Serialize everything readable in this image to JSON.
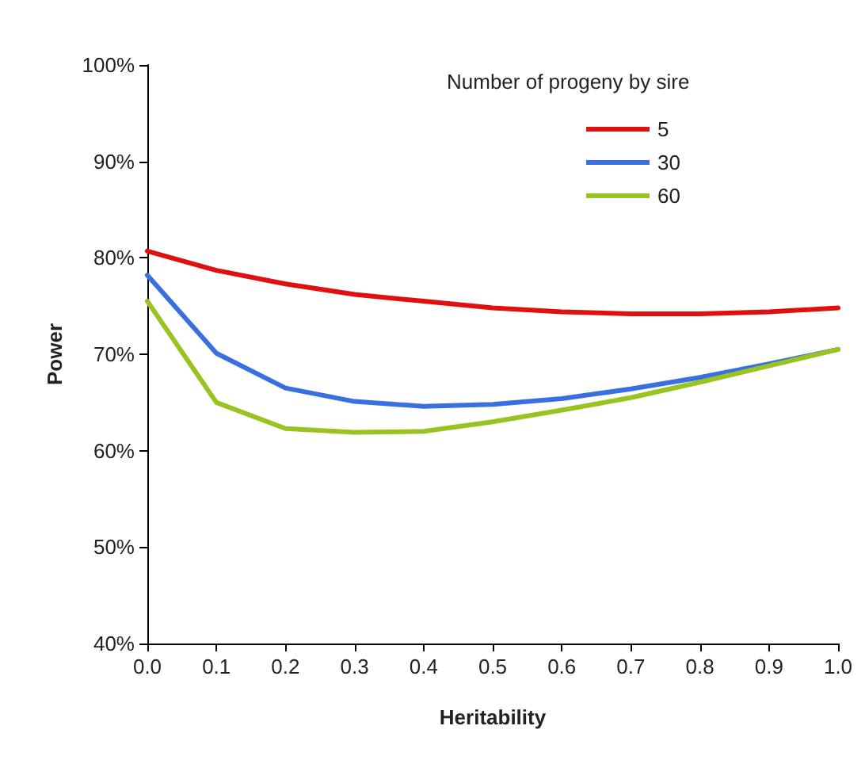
{
  "chart_data": {
    "type": "line",
    "xlabel": "Heritability",
    "ylabel": "Power",
    "legend_title": "Number of progeny by sire",
    "legend": "top right",
    "grid": false,
    "marker": "none",
    "line_style": "solid",
    "x": [
      0,
      0.1,
      0.2,
      0.3,
      0.4,
      0.5,
      0.6,
      0.7,
      0.8,
      0.9,
      1.0
    ],
    "series": [
      {
        "name": "5",
        "color": "#e01010",
        "values": [
          80.7,
          78.7,
          77.3,
          76.2,
          75.5,
          74.8,
          74.4,
          74.2,
          74.2,
          74.4,
          74.8
        ]
      },
      {
        "name": "30",
        "color": "#3a6fe0",
        "values": [
          78.2,
          70.1,
          66.5,
          65.1,
          64.6,
          64.8,
          65.4,
          66.4,
          67.6,
          69.0,
          70.5
        ]
      },
      {
        "name": "60",
        "color": "#99c320",
        "values": [
          75.5,
          65.0,
          62.3,
          61.9,
          62.0,
          63.0,
          64.2,
          65.5,
          67.1,
          68.8,
          70.5
        ]
      }
    ],
    "xlim": [
      0,
      1
    ],
    "xticks": [
      {
        "value": 0,
        "label": "0.0"
      },
      {
        "value": 0.1,
        "label": "0.1"
      },
      {
        "value": 0.2,
        "label": "0.2"
      },
      {
        "value": 0.3,
        "label": "0.3"
      },
      {
        "value": 0.4,
        "label": "0.4"
      },
      {
        "value": 0.5,
        "label": "0.5"
      },
      {
        "value": 0.6,
        "label": "0.6"
      },
      {
        "value": 0.7,
        "label": "0.7"
      },
      {
        "value": 0.8,
        "label": "0.8"
      },
      {
        "value": 0.9,
        "label": "0.9"
      },
      {
        "value": 1,
        "label": "1.0"
      }
    ],
    "ylim": [
      40,
      100
    ],
    "yticks": [
      {
        "value": 40,
        "label": "40%"
      },
      {
        "value": 50,
        "label": "50%"
      },
      {
        "value": 60,
        "label": "60%"
      },
      {
        "value": 70,
        "label": "70%"
      },
      {
        "value": 80,
        "label": "80%"
      },
      {
        "value": 90,
        "label": "90%"
      },
      {
        "value": 100,
        "label": "100%"
      }
    ]
  }
}
